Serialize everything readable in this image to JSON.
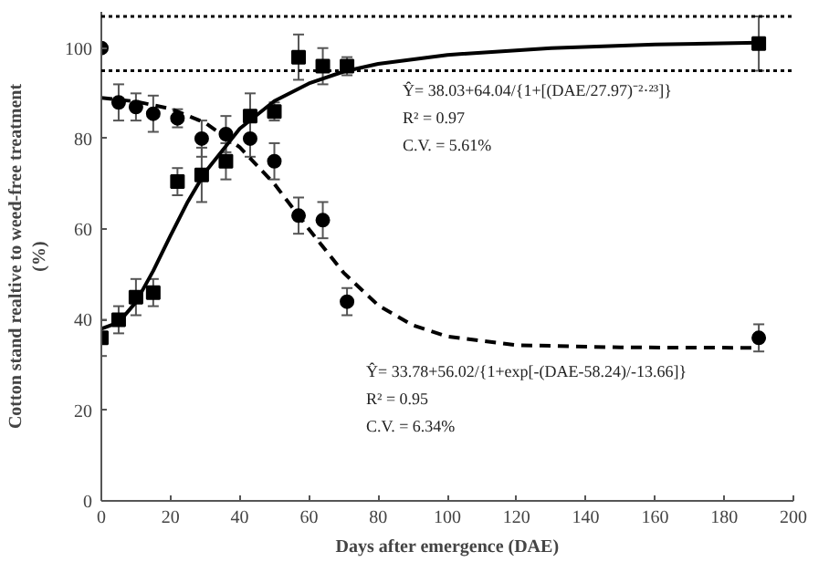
{
  "chart_data": {
    "type": "scatter",
    "xlabel": "Days after emergence (DAE)",
    "ylabel": "Cotton stand realtive to weed-free treatment\n(%)",
    "xlim": [
      0,
      200
    ],
    "ylim": [
      0,
      108
    ],
    "xticks": [
      0,
      20,
      40,
      60,
      80,
      100,
      120,
      140,
      160,
      180,
      200
    ],
    "yticks": [
      0,
      20,
      40,
      60,
      80,
      100
    ],
    "grid": false,
    "series": [
      {
        "marker": "square",
        "color": "#000000",
        "x": [
          0,
          5,
          10,
          15,
          22,
          29,
          36,
          43,
          50,
          57,
          64,
          71,
          190
        ],
        "values": [
          36,
          40,
          45,
          46,
          70.5,
          72,
          75,
          85,
          86,
          98,
          96,
          96,
          101
        ],
        "errors": [
          4,
          3,
          4,
          3,
          3,
          6,
          4,
          5,
          2,
          5,
          4,
          2,
          6
        ]
      },
      {
        "marker": "circle",
        "color": "#000000",
        "x": [
          0,
          5,
          10,
          15,
          22,
          29,
          36,
          43,
          50,
          57,
          64,
          71,
          190
        ],
        "values": [
          100,
          88,
          87,
          85.5,
          84.5,
          80,
          81,
          80,
          75,
          63,
          62,
          44,
          36
        ],
        "errors": [
          null,
          4,
          3,
          4,
          2,
          4,
          4,
          4,
          4,
          4,
          4,
          3,
          3
        ]
      },
      {
        "type": "line",
        "line_style": "solid",
        "color": "#000000",
        "x": [
          0,
          5,
          10,
          15,
          20,
          25,
          30,
          40,
          50,
          60,
          70,
          80,
          100,
          130,
          160,
          190
        ],
        "values": [
          38.0,
          39.4,
          43.9,
          50.8,
          58.6,
          66.1,
          72.6,
          82.2,
          88.3,
          92.2,
          94.8,
          96.5,
          98.5,
          100.0,
          100.8,
          101.2
        ]
      },
      {
        "type": "line",
        "line_style": "dashed",
        "color": "#000000",
        "x": [
          0,
          10,
          20,
          30,
          40,
          50,
          60,
          70,
          80,
          90,
          100,
          120,
          150,
          190
        ],
        "values": [
          89.0,
          88.2,
          86.6,
          83.5,
          78.1,
          70.0,
          60.0,
          50.4,
          43.2,
          38.8,
          36.3,
          34.4,
          33.9,
          33.8
        ]
      }
    ],
    "ref_lines": [
      {
        "axis": "y",
        "value": 107,
        "line_style": "dotted",
        "color": "#000000"
      },
      {
        "axis": "y",
        "value": 95,
        "line_style": "dotted",
        "color": "#000000"
      }
    ],
    "annotations": [
      "Ŷ= 38.03+64.04/{1+[(DAE/27.97)⁻²·²³]}",
      "R² = 0.97",
      "C.V. = 5.61%",
      "Ŷ= 33.78+56.02/{1+exp[-(DAE-58.24)/-13.66]}",
      "R² = 0.95",
      "C.V. = 6.34%"
    ]
  }
}
